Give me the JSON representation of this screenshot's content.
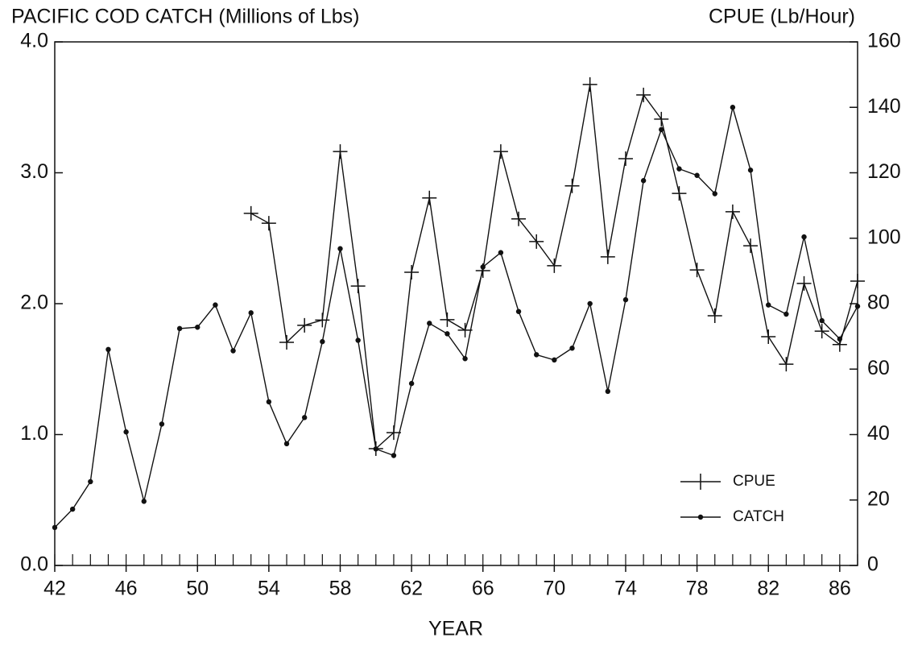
{
  "chart_data": {
    "type": "line",
    "title": "PACIFIC COD CATCH (Millions of Lbs)",
    "y2_title": "CPUE (Lb/Hour)",
    "xlabel": "YEAR",
    "x": [
      42,
      43,
      44,
      45,
      46,
      47,
      48,
      49,
      50,
      51,
      52,
      53,
      54,
      55,
      56,
      57,
      58,
      59,
      60,
      61,
      62,
      63,
      64,
      65,
      66,
      67,
      68,
      69,
      70,
      71,
      72,
      73,
      74,
      75,
      76,
      77,
      78,
      79,
      80,
      81,
      82,
      83,
      84,
      85,
      86,
      87
    ],
    "series": [
      {
        "name": "CPUE",
        "color": "#111111",
        "marker": "plus",
        "axis": "y2",
        "values": [
          null,
          null,
          null,
          null,
          null,
          null,
          null,
          null,
          null,
          null,
          null,
          107.6,
          104.6,
          68.2,
          73.4,
          75,
          126.5,
          85.4,
          35.7,
          40.6,
          89.6,
          112.3,
          75.1,
          71.9,
          90.1,
          126.5,
          105.9,
          99.0,
          91.6,
          116.0,
          147.0,
          94.3,
          124.3,
          143.8,
          136.4,
          113.7,
          90.3,
          76.3,
          108.1,
          97.7,
          69.9,
          61.5,
          86.2,
          71.6,
          67.5,
          86.9
        ]
      },
      {
        "name": "CATCH",
        "color": "#111111",
        "marker": "dot",
        "values": [
          0.29,
          0.43,
          0.64,
          1.65,
          1.02,
          0.49,
          1.08,
          1.81,
          1.82,
          1.99,
          1.64,
          1.93,
          1.25,
          0.93,
          1.13,
          1.71,
          2.42,
          1.72,
          0.89,
          0.84,
          1.39,
          1.85,
          1.77,
          1.58,
          2.28,
          2.39,
          1.94,
          1.61,
          1.57,
          1.66,
          2.0,
          1.33,
          2.03,
          2.94,
          3.33,
          3.03,
          2.98,
          2.84,
          3.5,
          3.02,
          1.99,
          1.92,
          2.51,
          1.87,
          1.73,
          1.98
        ]
      }
    ],
    "xlim": [
      42,
      87
    ],
    "xticks": [
      42,
      46,
      50,
      54,
      58,
      62,
      66,
      70,
      74,
      78,
      82,
      86
    ],
    "ylim": [
      0,
      4
    ],
    "yticks": [
      {
        "value": 0,
        "label": "0.0"
      },
      {
        "value": 1,
        "label": "1.0"
      },
      {
        "value": 2,
        "label": "2.0"
      },
      {
        "value": 3,
        "label": "3.0"
      },
      {
        "value": 4,
        "label": "4.0"
      }
    ],
    "y2lim": [
      0,
      160
    ],
    "y2ticks": [
      0,
      20,
      40,
      60,
      80,
      100,
      120,
      140,
      160
    ],
    "legend": "lower right"
  }
}
